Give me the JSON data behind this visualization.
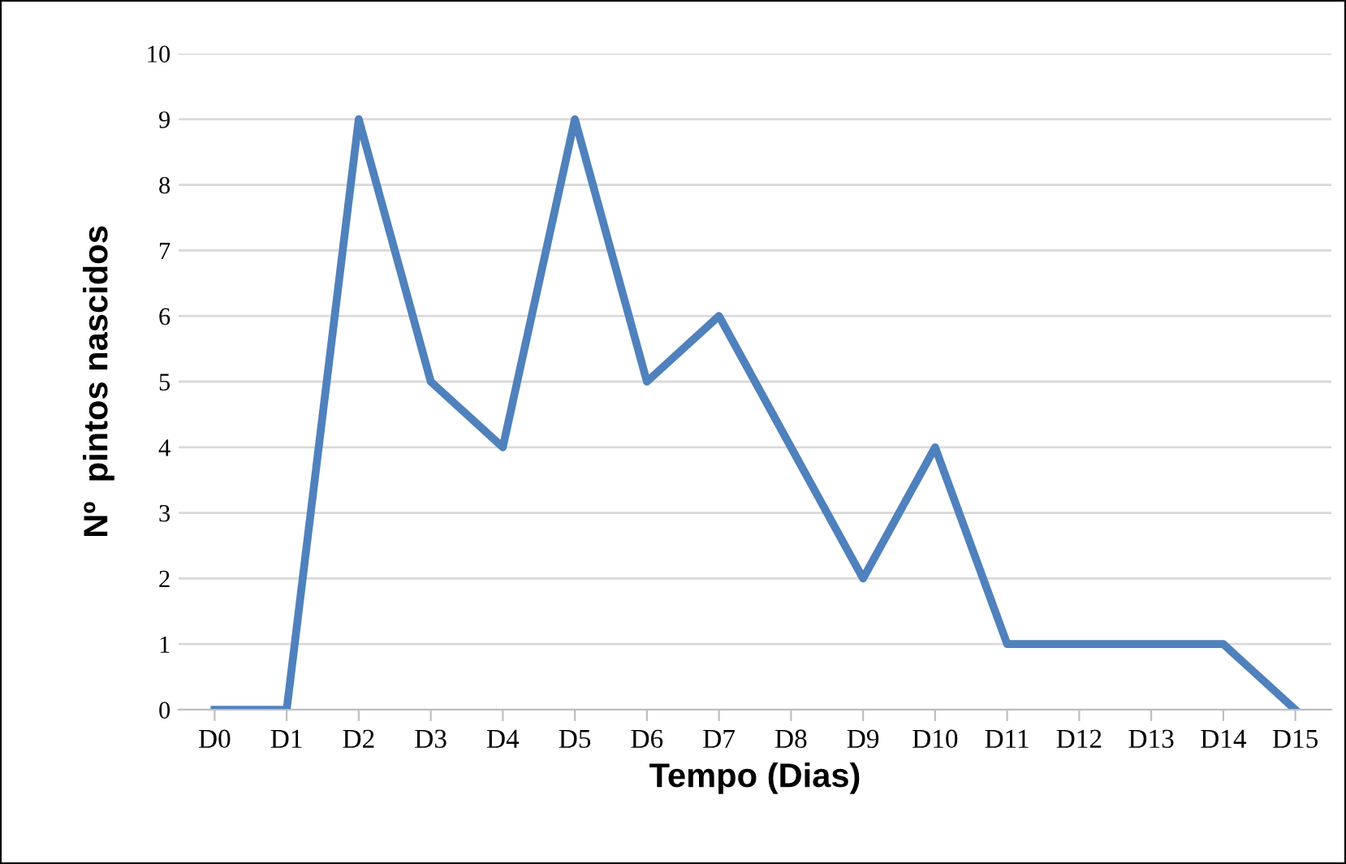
{
  "chart_data": {
    "type": "line",
    "xlabel": "Tempo (Dias)",
    "ylabel": "Nº  pintos nascidos",
    "categories": [
      "D0",
      "D1",
      "D2",
      "D3",
      "D4",
      "D5",
      "D6",
      "D7",
      "D8",
      "D9",
      "D10",
      "D11",
      "D12",
      "D13",
      "D14",
      "D15"
    ],
    "series": [
      {
        "color": "#4f81bd",
        "values": [
          0,
          0,
          9,
          5,
          4,
          9,
          5,
          6,
          4,
          2,
          4,
          1,
          1,
          1,
          1,
          0
        ]
      }
    ],
    "ylim": [
      0,
      10
    ],
    "yticks": [
      0,
      1,
      2,
      3,
      4,
      5,
      6,
      7,
      8,
      9,
      10
    ],
    "grid": "y",
    "marker": "none",
    "line_style": "solid"
  }
}
